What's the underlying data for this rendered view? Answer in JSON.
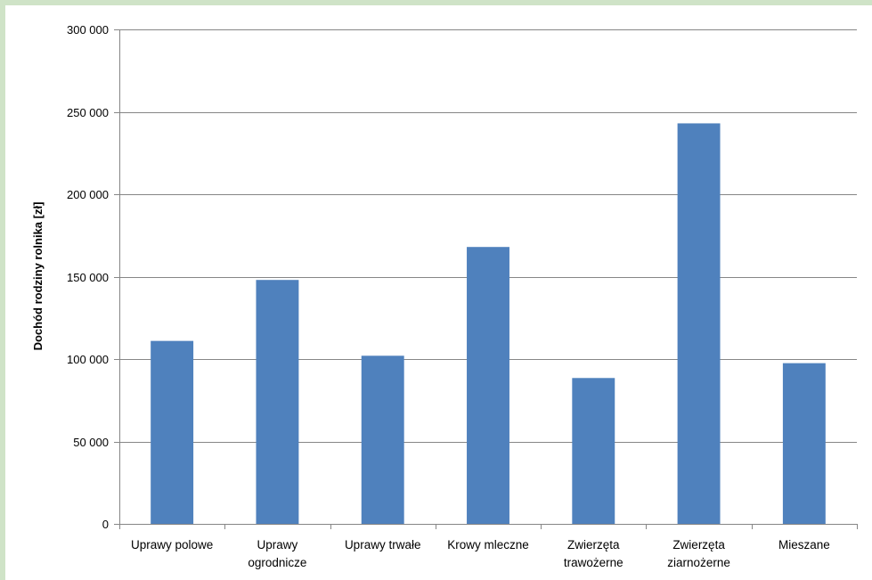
{
  "chart_data": {
    "type": "bar",
    "title": "",
    "xlabel": "",
    "ylabel": "Dochód rodziny rolnika [zł]",
    "ylim": [
      0,
      300000
    ],
    "yticks": [
      0,
      50000,
      100000,
      150000,
      200000,
      250000,
      300000
    ],
    "ytick_labels": [
      "0",
      "50 000",
      "100 000",
      "150 000",
      "200 000",
      "250 000",
      "300 000"
    ],
    "grid": true,
    "legend": "none",
    "bar_color": "#4f81bd",
    "categories": [
      [
        "Uprawy polowe"
      ],
      [
        "Uprawy",
        "ogrodnicze"
      ],
      [
        "Uprawy trwałe"
      ],
      [
        "Krowy mleczne"
      ],
      [
        "Zwierzęta",
        "trawożerne"
      ],
      [
        "Zwierzęta",
        "ziarnożerne"
      ],
      [
        "Mieszane"
      ]
    ],
    "values": [
      111000,
      148000,
      102000,
      168000,
      88500,
      243000,
      97500
    ]
  }
}
